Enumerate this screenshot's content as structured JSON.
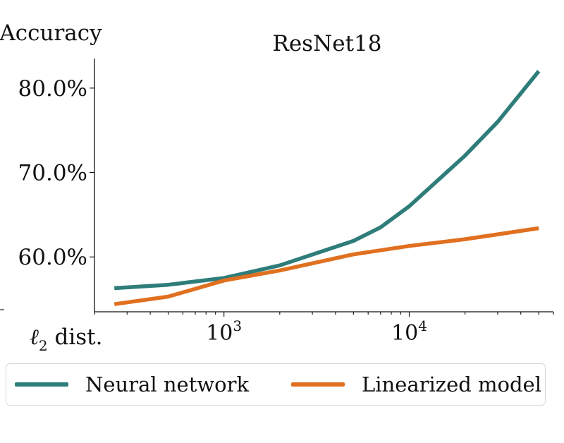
{
  "chart_data": {
    "type": "line",
    "title": "ResNet18",
    "ylabel": "Accuracy",
    "xlabel_main": "ℓ",
    "xlabel_sub": "2",
    "xlabel_rest": " dist.",
    "x_scale": "log",
    "xlim": [
      200,
      60000
    ],
    "ylim": [
      53.5,
      83.5
    ],
    "x_ticks": [
      {
        "value": 1000,
        "base": "10",
        "exp": "3"
      },
      {
        "value": 10000,
        "base": "10",
        "exp": "4"
      }
    ],
    "y_ticks": [
      {
        "value": 60,
        "label": "60.0%"
      },
      {
        "value": 70,
        "label": "70.0%"
      },
      {
        "value": 80,
        "label": "80.0%"
      }
    ],
    "series": [
      {
        "name": "Neural network",
        "color": "#2e7d7a",
        "x": [
          256,
          500,
          1000,
          2000,
          5000,
          7000,
          10000,
          20000,
          30000,
          50000
        ],
        "y": [
          56.3,
          56.7,
          57.5,
          59.0,
          61.9,
          63.5,
          66.0,
          72.0,
          76.0,
          82.0
        ]
      },
      {
        "name": "Linearized model",
        "color": "#e07020",
        "x": [
          256,
          500,
          1000,
          2000,
          5000,
          10000,
          20000,
          50000
        ],
        "y": [
          54.4,
          55.3,
          57.2,
          58.4,
          60.3,
          61.3,
          62.1,
          63.4
        ]
      }
    ],
    "grid": false,
    "legend_position": "bottom"
  }
}
